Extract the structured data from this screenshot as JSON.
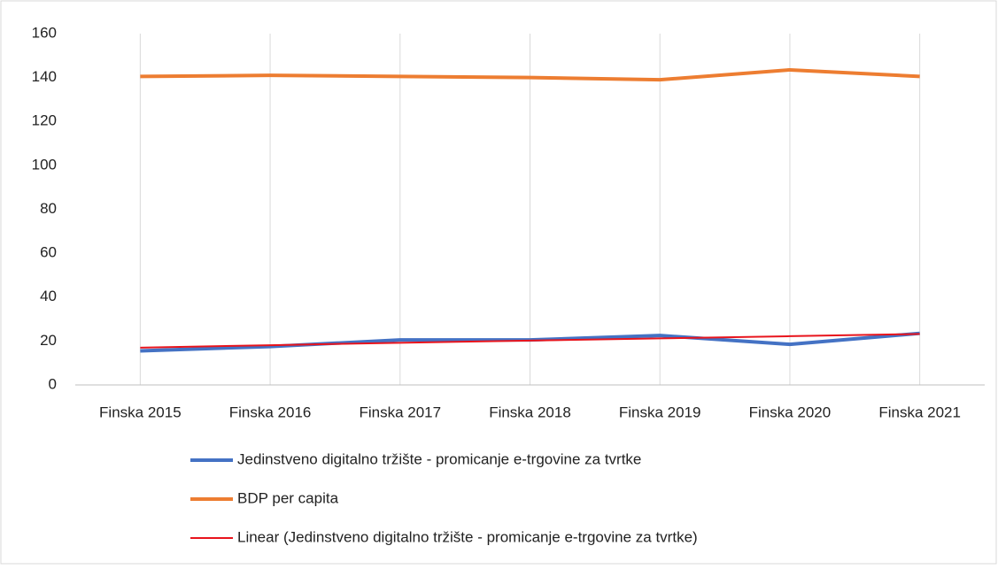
{
  "chart_data": {
    "type": "line",
    "categories": [
      "Finska 2015",
      "Finska 2016",
      "Finska 2017",
      "Finska 2018",
      "Finska 2019",
      "Finska 2020",
      "Finska 2021"
    ],
    "series": [
      {
        "name": "Jedinstveno digitalno tržište - promicanje e-trgovine za tvrtke",
        "color": "#4472c4",
        "width": 4,
        "values": [
          15.5,
          17.5,
          20.5,
          20.5,
          22.5,
          18.5,
          23.5
        ]
      },
      {
        "name": "BDP per capita",
        "color": "#ed7d31",
        "width": 4,
        "values": [
          140.5,
          141,
          140.5,
          140,
          139,
          143.5,
          140.5
        ]
      },
      {
        "name": "Linear (Jedinstveno digitalno tržište - promicanje e-trgovine za tvrtke)",
        "color": "#e8141c",
        "width": 2,
        "values": [
          17,
          18.1,
          19.2,
          20.2,
          21.2,
          22.2,
          23.2
        ]
      }
    ],
    "ylim": [
      0,
      160
    ],
    "yticks": [
      0,
      20,
      40,
      60,
      80,
      100,
      120,
      140,
      160
    ],
    "grid": "x",
    "legend": "bottom"
  }
}
